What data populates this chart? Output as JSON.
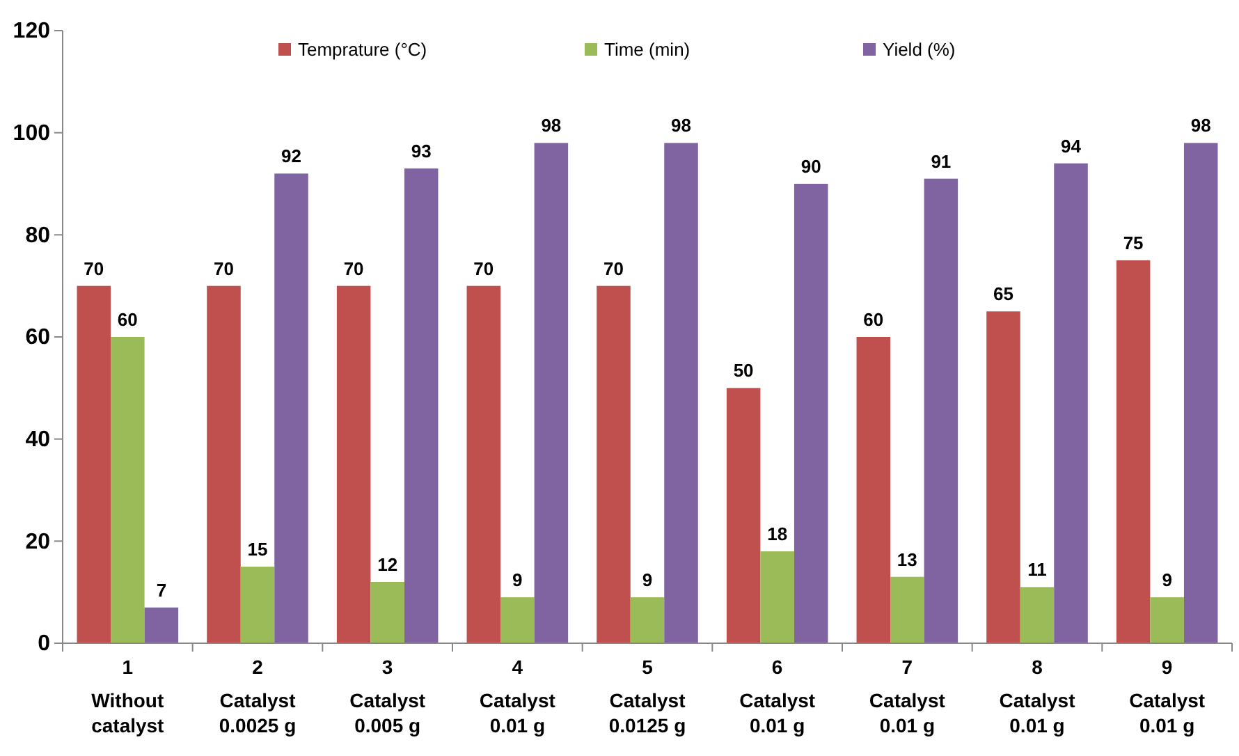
{
  "chart_data": {
    "type": "bar",
    "categories": [
      "1\nWithout\ncatalyst",
      "2\nCatalyst\n0.0025 g",
      "3\nCatalyst\n0.005 g",
      "4\nCatalyst\n0.01 g",
      "5\nCatalyst\n0.0125 g",
      "6\nCatalyst\n0.01 g",
      "7\nCatalyst\n0.01 g",
      "8\nCatalyst\n0.01 g",
      "9\nCatalyst\n0.01 g"
    ],
    "series": [
      {
        "name": "Temprature (°C)",
        "color": "#c0504d",
        "values": [
          70,
          70,
          70,
          70,
          70,
          50,
          60,
          65,
          75
        ]
      },
      {
        "name": "Time (min)",
        "color": "#9bbb59",
        "values": [
          60,
          15,
          12,
          9,
          9,
          18,
          13,
          11,
          9
        ]
      },
      {
        "name": "Yield (%)",
        "color": "#8064a2",
        "values": [
          7,
          92,
          93,
          98,
          98,
          90,
          91,
          94,
          98
        ]
      }
    ],
    "ylim": [
      0,
      120
    ],
    "yticks": [
      0,
      20,
      40,
      60,
      80,
      100,
      120
    ],
    "data_labels": true,
    "legend": "top",
    "grid": false
  }
}
